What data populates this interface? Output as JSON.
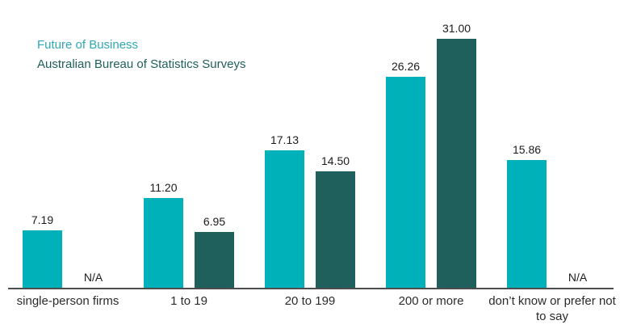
{
  "legend": {
    "series1_label": "Future of Business",
    "series2_label": "Australian Bureau of Statistics Surveys"
  },
  "colors": {
    "series1": "#00b1ba",
    "series2": "#20605c",
    "series1_legend_text": "#2fa8b5",
    "series2_legend_text": "#20605c",
    "axis": "#4d4d4d",
    "text": "#1c1c1c"
  },
  "na_label": "N/A",
  "chart_data": {
    "type": "bar",
    "title": "",
    "xlabel": "",
    "ylabel": "",
    "categories": [
      "single-person firms",
      "1 to 19",
      "20 to 199",
      "200 or more",
      "don’t know or prefer not to say"
    ],
    "series": [
      {
        "name": "Future of Business",
        "color": "#00b1ba",
        "values": [
          7.19,
          11.2,
          17.13,
          26.26,
          15.86
        ],
        "value_labels": [
          "7.19",
          "11.20",
          "17.13",
          "26.26",
          "15.86"
        ]
      },
      {
        "name": "Australian Bureau of Statistics Surveys",
        "color": "#20605c",
        "values": [
          null,
          6.95,
          14.5,
          31.0,
          null
        ],
        "value_labels": [
          "N/A",
          "6.95",
          "14.50",
          "31.00",
          "N/A"
        ]
      }
    ],
    "ylim": [
      0,
      31
    ],
    "grid": false,
    "legend_position": "top-left",
    "value_labels_shown": true,
    "missing_value_text": "N/A"
  }
}
